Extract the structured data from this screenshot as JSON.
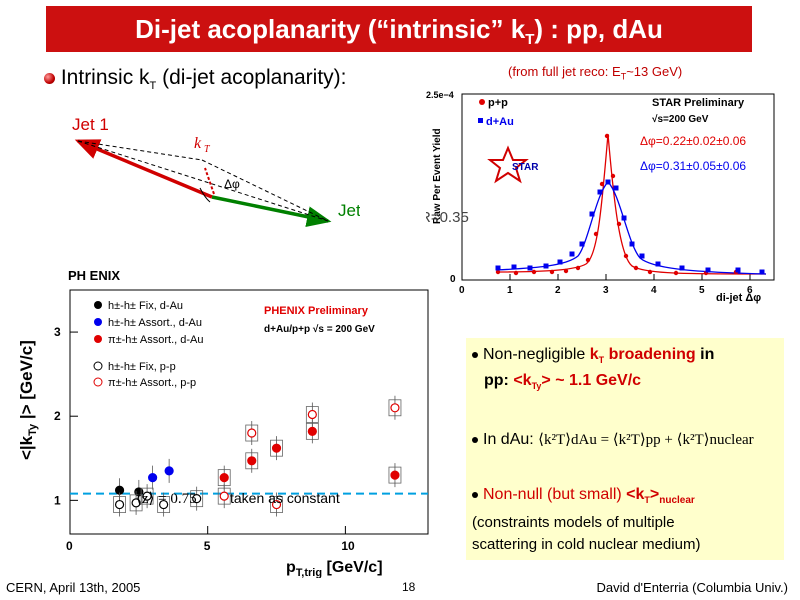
{
  "title": {
    "prefix": "Di-jet acoplanarity (“intrinsic” k",
    "sub": "T",
    "suffix": ") : pp, dAu"
  },
  "intro": {
    "prefix": "Intrinsic k",
    "sub": "T",
    "suffix": " (di-jet acoplanarity):"
  },
  "from_note": {
    "prefix": "(from full jet reco: E",
    "sub": "T",
    "suffix": "~13 GeV)"
  },
  "diagram": {
    "jet1": "Jet 1",
    "jet2": "Jet 2",
    "kt": "k",
    "kt_sub": "T",
    "dphi": "Δφ"
  },
  "star": {
    "ytick": "2.5e−4",
    "ylabel": "Raw Per Event Yield",
    "legend_pp": "p+p",
    "legend_dau": "d+Au",
    "prelim": "STAR Preliminary",
    "sqrt_s": "√s=200 GeV",
    "dphi_pp": "Δφ=0.22±0.02±0.06",
    "dphi_dau": "Δφ=0.31±0.05±0.06",
    "logo": "STAR",
    "xlabel": "di-jet Δφ",
    "overlay": "R=0.35",
    "xticks": [
      "0",
      "1",
      "2",
      "3",
      "4",
      "5",
      "6"
    ],
    "y0": "0",
    "colors": {
      "pp": "#e00000",
      "dau": "#0000ee"
    }
  },
  "phenix": {
    "logo": "PH ENIX",
    "ylabel": "<|k",
    "ylabel_sub": "Ty",
    "ylabel_suffix": " |>   [GeV/c]",
    "xlabel": "p",
    "xlabel_sub": "T,trig",
    "xlabel_suffix": "  [GeV/c]",
    "prelim": "PHENIX Preliminary",
    "system": "d+Au/p+p √s = 200 GeV",
    "legend": [
      "h±-h± Fix, d-Au",
      "h±-h± Assort., d-Au",
      "π±-h± Assort., d-Au",
      "h±-h± Fix, p-p",
      "π±-h± Assort., p-p"
    ],
    "xticks": [
      "0",
      "5",
      "10"
    ],
    "yticks": [
      "1",
      "2",
      "3"
    ],
    "annotation_z": "⟨z⟩ = 0.75",
    "annotation_text": "taken as constant",
    "chart_data": {
      "type": "scatter",
      "xlabel": "pT,trig [GeV/c]",
      "ylabel": "<|kTy|> [GeV/c]",
      "xlim": [
        0,
        13
      ],
      "ylim": [
        0.6,
        3.5
      ],
      "dashed_line_y": 1.08,
      "series": [
        {
          "name": "h±-h± Fix, d-Au",
          "style": "filled-black",
          "x": [
            1.8,
            2.5
          ],
          "y": [
            1.12,
            1.1
          ]
        },
        {
          "name": "h±-h± Assort., d-Au",
          "style": "filled-blue",
          "x": [
            3.0,
            3.6
          ],
          "y": [
            1.27,
            1.35
          ]
        },
        {
          "name": "π±-h± Assort., d-Au",
          "style": "filled-red",
          "x": [
            5.6,
            6.6,
            7.5,
            8.8,
            11.8
          ],
          "y": [
            1.27,
            1.47,
            1.62,
            1.82,
            1.3
          ]
        },
        {
          "name": "h±-h± Fix, p-p",
          "style": "open-black",
          "x": [
            1.8,
            2.4,
            2.8,
            3.4,
            4.6
          ],
          "y": [
            0.95,
            0.97,
            1.05,
            0.95,
            1.02
          ]
        },
        {
          "name": "π±-h± Assort., p-p",
          "style": "open-red",
          "x": [
            5.6,
            6.6,
            7.5,
            8.8,
            11.8
          ],
          "y": [
            1.05,
            1.8,
            0.95,
            2.02,
            2.1
          ]
        }
      ]
    }
  },
  "info": {
    "l1a": "Non-negligible ",
    "l1b": "k",
    "l1b_sub": "T",
    "l1c": " broadening",
    "l1d": " in",
    "l2a": "pp:  ",
    "l2b": "<k",
    "l2b_sub": "Ty",
    "l2c": "> ~ 1.1 GeV/c",
    "l3a": "In dAu:  ",
    "l3eq": "⟨k²T⟩dAu = ⟨k²T⟩pp + ⟨k²T⟩nuclear",
    "l4a": "Non-null (but small) ",
    "l4b": "<k",
    "l4b_sub": "T",
    "l4c": ">",
    "l4d": "nuclear",
    "l5": "(constraints models of multiple",
    "l6": "scattering in cold nuclear medium)"
  },
  "footer": {
    "left": "CERN, April 13th, 2005",
    "page": "18",
    "right": "David d'Enterria (Columbia Univ.)"
  }
}
